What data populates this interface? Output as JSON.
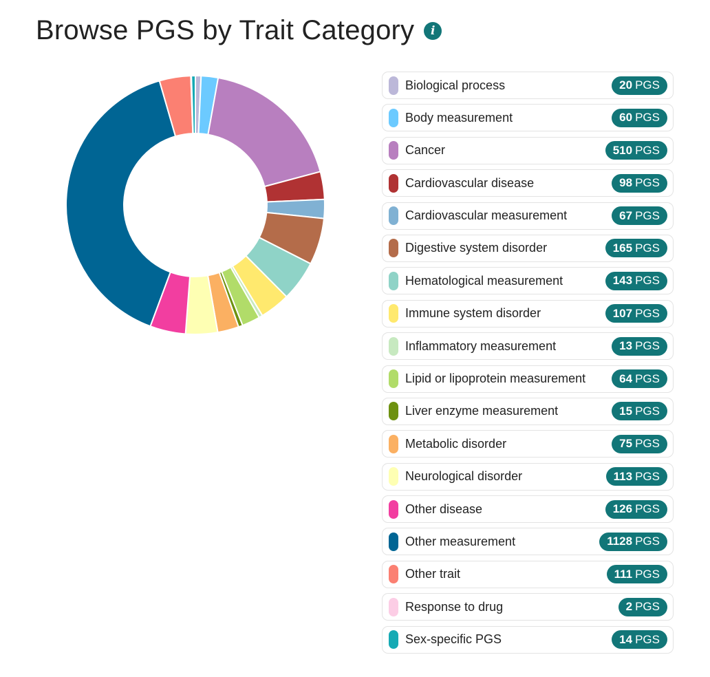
{
  "page": {
    "title": "Browse PGS by Trait Category",
    "info_icon": "info-icon",
    "badge_unit": "PGS"
  },
  "chart_data": {
    "type": "pie",
    "donut": true,
    "title": "Browse PGS by Trait Category",
    "legend_position": "right",
    "categories": [
      {
        "name": "Biological process",
        "value": 20,
        "color": "#bcb8d9"
      },
      {
        "name": "Body measurement",
        "value": 60,
        "color": "#6ccaff"
      },
      {
        "name": "Cancer",
        "value": 510,
        "color": "#b87fbf"
      },
      {
        "name": "Cardiovascular disease",
        "value": 98,
        "color": "#b03233"
      },
      {
        "name": "Cardiovascular measurement",
        "value": 67,
        "color": "#80b1d3"
      },
      {
        "name": "Digestive system disorder",
        "value": 165,
        "color": "#b46c4a"
      },
      {
        "name": "Hematological measurement",
        "value": 143,
        "color": "#8fd3c7"
      },
      {
        "name": "Immune system disorder",
        "value": 107,
        "color": "#ffe96e"
      },
      {
        "name": "Inflammatory measurement",
        "value": 13,
        "color": "#c7e9c0"
      },
      {
        "name": "Lipid or lipoprotein measurement",
        "value": 64,
        "color": "#b1dc69"
      },
      {
        "name": "Liver enzyme measurement",
        "value": 15,
        "color": "#6d9110"
      },
      {
        "name": "Metabolic disorder",
        "value": 75,
        "color": "#fbb062"
      },
      {
        "name": "Neurological disorder",
        "value": 113,
        "color": "#feffb3"
      },
      {
        "name": "Other disease",
        "value": 126,
        "color": "#f23ea0"
      },
      {
        "name": "Other measurement",
        "value": 1128,
        "color": "#006594"
      },
      {
        "name": "Other trait",
        "value": 111,
        "color": "#fb8072"
      },
      {
        "name": "Response to drug",
        "value": 2,
        "color": "#fccde5"
      },
      {
        "name": "Sex-specific PGS",
        "value": 14,
        "color": "#16aab4"
      }
    ]
  }
}
